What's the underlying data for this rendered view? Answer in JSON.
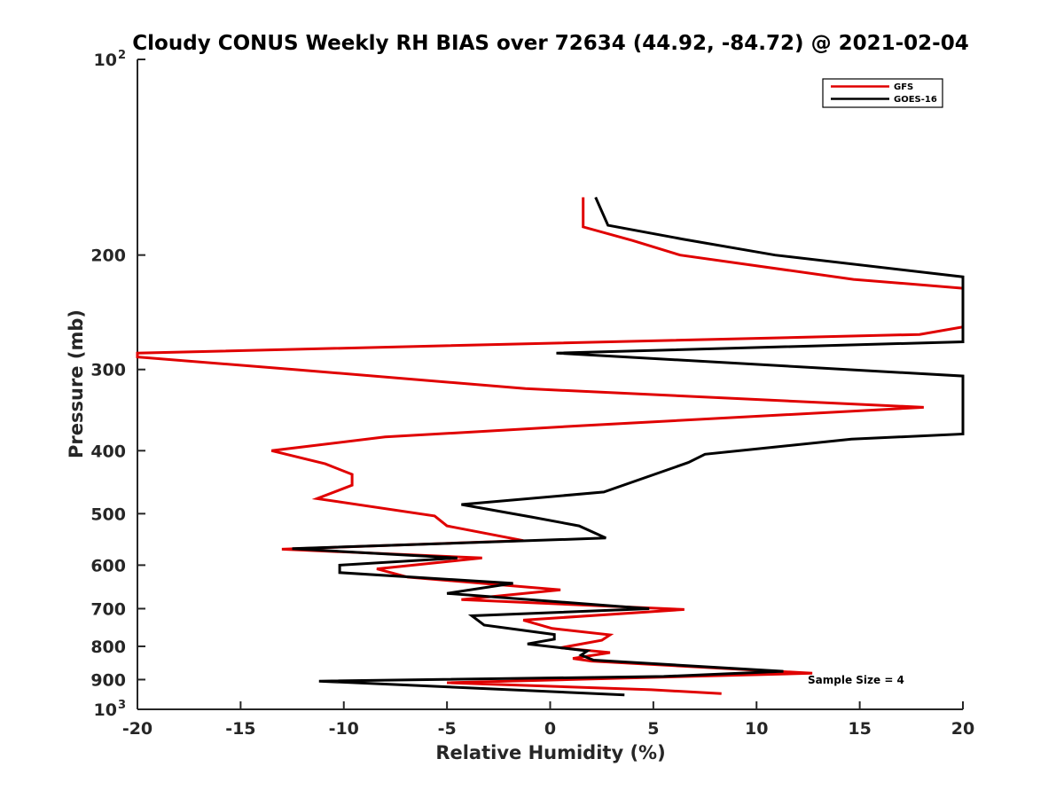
{
  "chart_data": {
    "type": "line",
    "title": "Cloudy CONUS Weekly RH BIAS over 72634 (44.92, -84.72) @ 2021-02-04",
    "xlabel": "Relative Humidity (%)",
    "ylabel": "Pressure (mb)",
    "xlim": [
      -20,
      20
    ],
    "ylim": [
      100,
      1000
    ],
    "yscale": "log",
    "y_reversed": true,
    "x_ticks": [
      {
        "value": -20,
        "label": "-20"
      },
      {
        "value": -15,
        "label": "-15"
      },
      {
        "value": -10,
        "label": "-10"
      },
      {
        "value": -5,
        "label": "-5"
      },
      {
        "value": 0,
        "label": "0"
      },
      {
        "value": 5,
        "label": "5"
      },
      {
        "value": 10,
        "label": "10"
      },
      {
        "value": 15,
        "label": "15"
      },
      {
        "value": 20,
        "label": "20"
      }
    ],
    "y_ticks": [
      {
        "value": 100,
        "base": "10",
        "exp": "2"
      },
      {
        "value": 200,
        "base": "200",
        "exp": ""
      },
      {
        "value": 300,
        "base": "300",
        "exp": ""
      },
      {
        "value": 400,
        "base": "400",
        "exp": ""
      },
      {
        "value": 500,
        "base": "500",
        "exp": ""
      },
      {
        "value": 600,
        "base": "600",
        "exp": ""
      },
      {
        "value": 700,
        "base": "700",
        "exp": ""
      },
      {
        "value": 800,
        "base": "800",
        "exp": ""
      },
      {
        "value": 900,
        "base": "900",
        "exp": ""
      },
      {
        "value": 1000,
        "base": "10",
        "exp": "3"
      }
    ],
    "grid": false,
    "legend_position": "top-right",
    "annotation": "Sample Size = 4",
    "series": [
      {
        "name": "GFS",
        "color": "#e00000",
        "points": [
          [
            1.6,
            163
          ],
          [
            1.6,
            181
          ],
          [
            4.0,
            190
          ],
          [
            6.3,
            200
          ],
          [
            14.7,
            218
          ],
          [
            20,
            225
          ],
          [
            20,
            258
          ],
          [
            17.9,
            265
          ],
          [
            -20,
            283
          ],
          [
            -20,
            287
          ],
          [
            -12.4,
            300
          ],
          [
            -1.2,
            321
          ],
          [
            18.1,
            343
          ],
          [
            1.6,
            366
          ],
          [
            -8.0,
            381
          ],
          [
            -13.5,
            400
          ],
          [
            -10.9,
            419
          ],
          [
            -9.6,
            435
          ],
          [
            -9.6,
            452
          ],
          [
            -11.3,
            474
          ],
          [
            -5.6,
            504
          ],
          [
            -5.0,
            522
          ],
          [
            -1.3,
            550
          ],
          [
            -13.0,
            567
          ],
          [
            -3.3,
            585
          ],
          [
            -8.4,
            608
          ],
          [
            -6.9,
            626
          ],
          [
            0.5,
            655
          ],
          [
            -4.3,
            678
          ],
          [
            6.5,
            702
          ],
          [
            -1.3,
            729
          ],
          [
            0.1,
            751
          ],
          [
            2.9,
            768
          ],
          [
            2.5,
            783
          ],
          [
            0.5,
            804
          ],
          [
            2.9,
            818
          ],
          [
            1.1,
            835
          ],
          [
            2.0,
            843
          ],
          [
            12.7,
            880
          ],
          [
            -5.0,
            910
          ],
          [
            4.9,
            933
          ],
          [
            8.3,
            946
          ]
        ]
      },
      {
        "name": "GOES-16",
        "color": "#000000",
        "points": [
          [
            2.2,
            163
          ],
          [
            2.8,
            180
          ],
          [
            6.4,
            189
          ],
          [
            10.9,
            200
          ],
          [
            20,
            216
          ],
          [
            20,
            272
          ],
          [
            0.3,
            283
          ],
          [
            20,
            307
          ],
          [
            20,
            377
          ],
          [
            14.6,
            384
          ],
          [
            7.5,
            405
          ],
          [
            6.7,
            417
          ],
          [
            2.6,
            463
          ],
          [
            -4.3,
            484
          ],
          [
            -0.9,
            506
          ],
          [
            1.4,
            522
          ],
          [
            2.7,
            545
          ],
          [
            -12.5,
            566
          ],
          [
            -4.5,
            585
          ],
          [
            -10.2,
            600
          ],
          [
            -10.2,
            616
          ],
          [
            -1.8,
            640
          ],
          [
            -5.0,
            663
          ],
          [
            4.8,
            700
          ],
          [
            -3.8,
            718
          ],
          [
            -3.2,
            742
          ],
          [
            0.2,
            767
          ],
          [
            0.2,
            780
          ],
          [
            -1.1,
            793
          ],
          [
            1.8,
            813
          ],
          [
            1.5,
            825
          ],
          [
            2.1,
            840
          ],
          [
            11.3,
            874
          ],
          [
            5.5,
            890
          ],
          [
            -11.2,
            905
          ],
          [
            3.6,
            950
          ]
        ]
      }
    ]
  }
}
